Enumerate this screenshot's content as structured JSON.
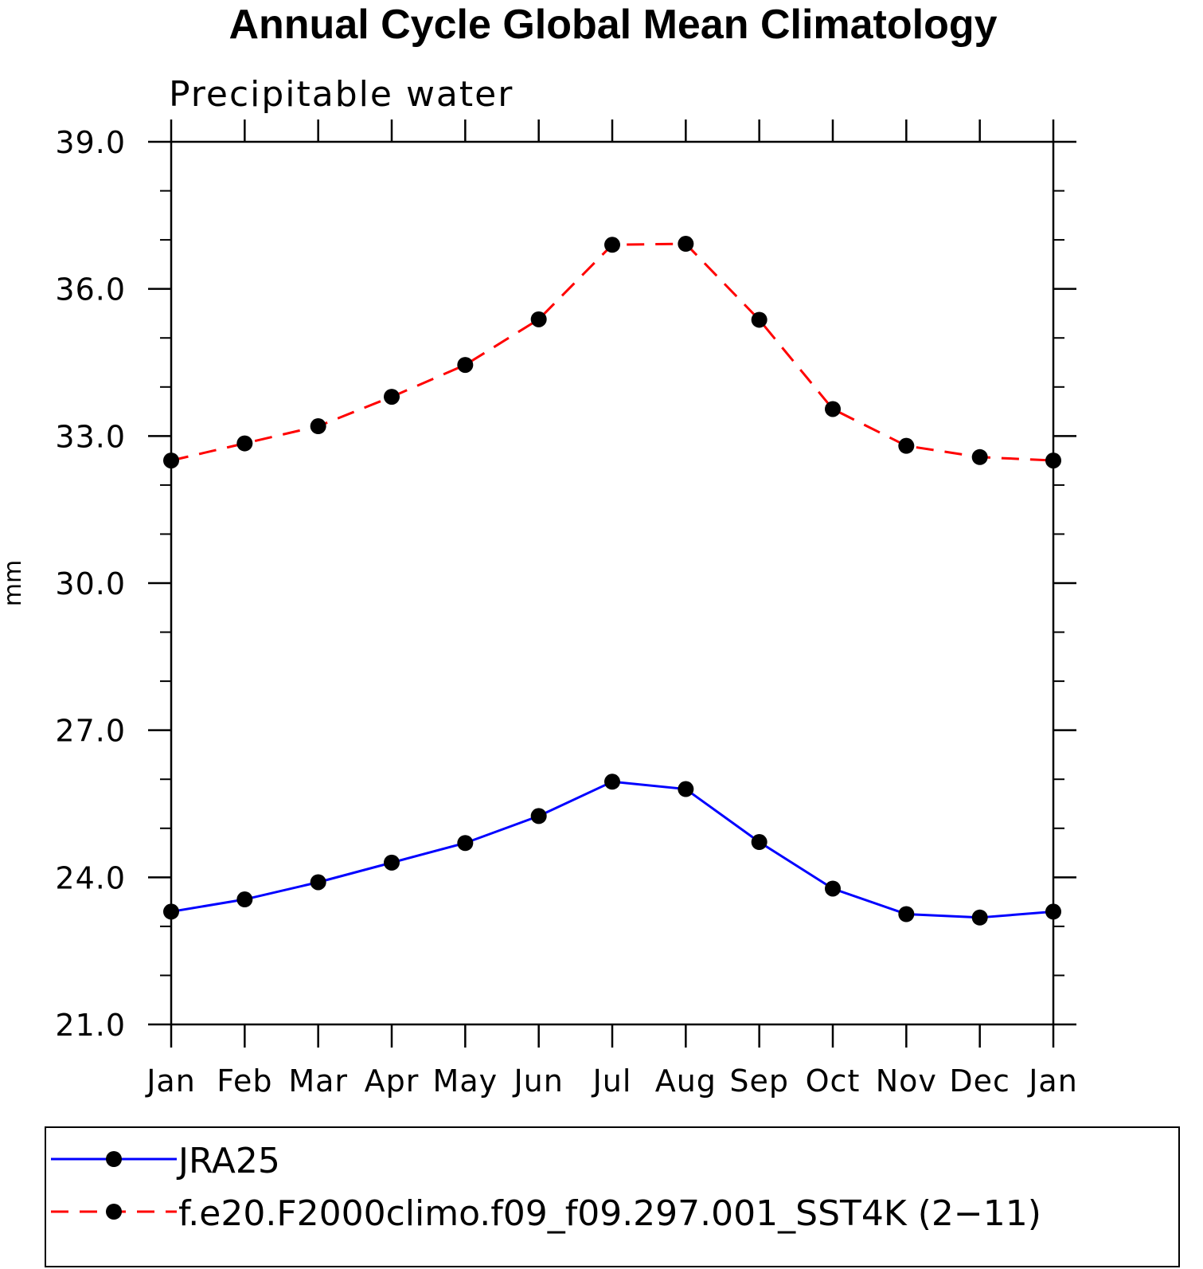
{
  "chart_data": {
    "type": "line",
    "title": "Annual Cycle Global Mean Climatology",
    "subtitle": "Precipitable water",
    "xlabel": "",
    "ylabel": "mm",
    "categories": [
      "Jan",
      "Feb",
      "Mar",
      "Apr",
      "May",
      "Jun",
      "Jul",
      "Aug",
      "Sep",
      "Oct",
      "Nov",
      "Dec",
      "Jan"
    ],
    "ylim": [
      21.0,
      39.0
    ],
    "yticks_major": [
      "21.0",
      "24.0",
      "27.0",
      "30.0",
      "33.0",
      "36.0",
      "39.0"
    ],
    "series": [
      {
        "name": "JRA25",
        "color": "#0000ff",
        "dash": "solid",
        "marker": "filled-circle",
        "values": [
          23.3,
          23.55,
          23.9,
          24.3,
          24.7,
          25.25,
          25.95,
          25.8,
          24.72,
          23.77,
          23.25,
          23.18,
          23.3
        ]
      },
      {
        "name": "f.e20.F2000climo.f09_f09.297.001_SST4K (2−11)",
        "color": "#ff0000",
        "dash": "dashed",
        "marker": "filled-circle",
        "values": [
          32.5,
          32.85,
          33.2,
          33.8,
          34.45,
          35.38,
          36.9,
          36.92,
          35.37,
          33.55,
          32.8,
          32.57,
          32.5
        ]
      }
    ],
    "grid": false,
    "legend_position": "bottom"
  }
}
